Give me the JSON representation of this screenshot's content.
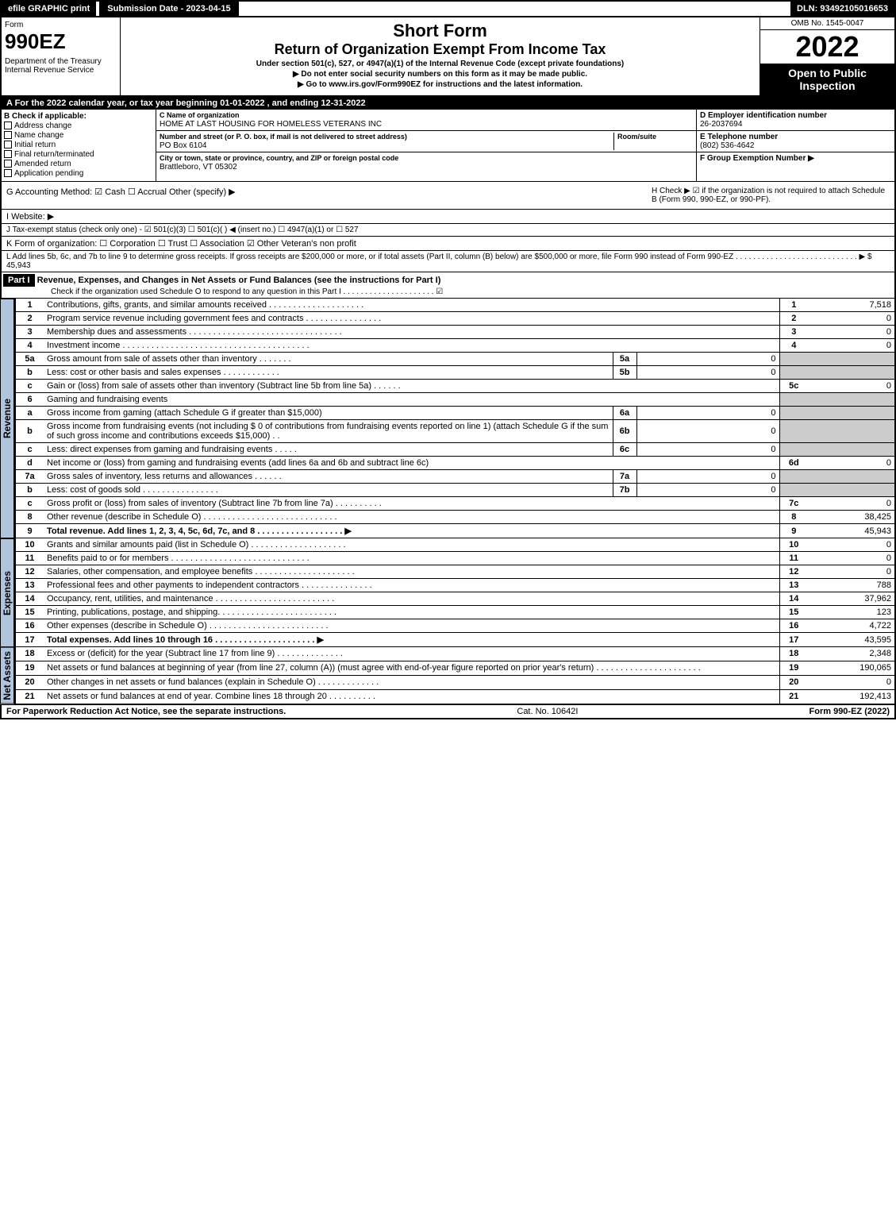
{
  "top": {
    "efile": "efile GRAPHIC print",
    "sub": "Submission Date - 2023-04-15",
    "dln": "DLN: 93492105016653"
  },
  "hdr": {
    "form": "Form",
    "num": "990EZ",
    "dept": "Department of the Treasury\nInternal Revenue Service",
    "t1": "Short Form",
    "t2": "Return of Organization Exempt From Income Tax",
    "sub1": "Under section 501(c), 527, or 4947(a)(1) of the Internal Revenue Code (except private foundations)",
    "sub2": "▶ Do not enter social security numbers on this form as it may be made public.",
    "sub3": "▶ Go to www.irs.gov/Form990EZ for instructions and the latest information.",
    "omb": "OMB No. 1545-0047",
    "year": "2022",
    "badge": "Open to Public Inspection"
  },
  "a": "A  For the 2022 calendar year, or tax year beginning 01-01-2022 , and ending 12-31-2022",
  "b": {
    "hdr": "B  Check if applicable:",
    "opts": [
      "Address change",
      "Name change",
      "Initial return",
      "Final return/terminated",
      "Amended return",
      "Application pending"
    ]
  },
  "c": {
    "name_lbl": "C Name of organization",
    "name": "HOME AT LAST HOUSING FOR HOMELESS VETERANS INC",
    "street_lbl": "Number and street (or P. O. box, if mail is not delivered to street address)",
    "street": "PO Box 6104",
    "room_lbl": "Room/suite",
    "city_lbl": "City or town, state or province, country, and ZIP or foreign postal code",
    "city": "Brattleboro, VT  05302"
  },
  "d": {
    "lbl": "D Employer identification number",
    "val": "26-2037694"
  },
  "e": {
    "lbl": "E Telephone number",
    "val": "(802) 536-4642"
  },
  "f": {
    "lbl": "F Group Exemption Number  ▶"
  },
  "g": "G Accounting Method:   ☑ Cash   ☐ Accrual   Other (specify) ▶",
  "h": "H  Check ▶ ☑ if the organization is not required to attach Schedule B (Form 990, 990-EZ, or 990-PF).",
  "i": "I Website: ▶",
  "j": "J Tax-exempt status (check only one) - ☑ 501(c)(3)  ☐ 501(c)( ) ◀ (insert no.)  ☐ 4947(a)(1) or  ☐ 527",
  "k": "K Form of organization:  ☐ Corporation  ☐ Trust  ☐ Association  ☑ Other Veteran's non profit",
  "l": "L Add lines 5b, 6c, and 7b to line 9 to determine gross receipts. If gross receipts are $200,000 or more, or if total assets (Part II, column (B) below) are $500,000 or more, file Form 990 instead of Form 990-EZ . . . . . . . . . . . . . . . . . . . . . . . . . . . . ▶ $ 45,943",
  "part1": {
    "hdr": "Part I",
    "title": "Revenue, Expenses, and Changes in Net Assets or Fund Balances (see the instructions for Part I)",
    "sub": "Check if the organization used Schedule O to respond to any question in this Part I . . . . . . . . . . . . . . . . . . . . . ☑"
  },
  "rev": [
    {
      "n": "1",
      "d": "Contributions, gifts, grants, and similar amounts received . . . . . . . . . . . . . . . . . . . .",
      "r": "1",
      "v": "7,518"
    },
    {
      "n": "2",
      "d": "Program service revenue including government fees and contracts . . . . . . . . . . . . . . . .",
      "r": "2",
      "v": "0"
    },
    {
      "n": "3",
      "d": "Membership dues and assessments . . . . . . . . . . . . . . . . . . . . . . . . . . . . . . . .",
      "r": "3",
      "v": "0"
    },
    {
      "n": "4",
      "d": "Investment income . . . . . . . . . . . . . . . . . . . . . . . . . . . . . . . . . . . . . . .",
      "r": "4",
      "v": "0"
    },
    {
      "n": "5a",
      "d": "Gross amount from sale of assets other than inventory . . . . . . .",
      "sl": "5a",
      "sv": "0"
    },
    {
      "n": "b",
      "d": "Less: cost or other basis and sales expenses . . . . . . . . . . . .",
      "sl": "5b",
      "sv": "0"
    },
    {
      "n": "c",
      "d": "Gain or (loss) from sale of assets other than inventory (Subtract line 5b from line 5a) . . . . . .",
      "r": "5c",
      "v": "0"
    },
    {
      "n": "6",
      "d": "Gaming and fundraising events"
    },
    {
      "n": "a",
      "d": "Gross income from gaming (attach Schedule G if greater than $15,000)",
      "sl": "6a",
      "sv": "0"
    },
    {
      "n": "b",
      "d": "Gross income from fundraising events (not including $ 0   of contributions from fundraising events reported on line 1) (attach Schedule G if the sum of such gross income and contributions exceeds $15,000)   . .",
      "sl": "6b",
      "sv": "0"
    },
    {
      "n": "c",
      "d": "Less: direct expenses from gaming and fundraising events  . . . . .",
      "sl": "6c",
      "sv": "0"
    },
    {
      "n": "d",
      "d": "Net income or (loss) from gaming and fundraising events (add lines 6a and 6b and subtract line 6c)",
      "r": "6d",
      "v": "0"
    },
    {
      "n": "7a",
      "d": "Gross sales of inventory, less returns and allowances . . . . . .",
      "sl": "7a",
      "sv": "0"
    },
    {
      "n": "b",
      "d": "Less: cost of goods sold       . . . . . . . . . . . . . . . .",
      "sl": "7b",
      "sv": "0"
    },
    {
      "n": "c",
      "d": "Gross profit or (loss) from sales of inventory (Subtract line 7b from line 7a) . . . . . . . . . .",
      "r": "7c",
      "v": "0"
    },
    {
      "n": "8",
      "d": "Other revenue (describe in Schedule O) . . . . . . . . . . . . . . . . . . . . . . . . . . . .",
      "r": "8",
      "v": "38,425"
    },
    {
      "n": "9",
      "d": "Total revenue. Add lines 1, 2, 3, 4, 5c, 6d, 7c, and 8 . . . . . . . . . . . . . . . . . .  ▶",
      "r": "9",
      "v": "45,943",
      "bold": true
    }
  ],
  "exp": [
    {
      "n": "10",
      "d": "Grants and similar amounts paid (list in Schedule O) . . . . . . . . . . . . . . . . . . . .",
      "r": "10",
      "v": "0"
    },
    {
      "n": "11",
      "d": "Benefits paid to or for members    . . . . . . . . . . . . . . . . . . . . . . . . . . . . .",
      "r": "11",
      "v": "0"
    },
    {
      "n": "12",
      "d": "Salaries, other compensation, and employee benefits . . . . . . . . . . . . . . . . . . . . .",
      "r": "12",
      "v": "0"
    },
    {
      "n": "13",
      "d": "Professional fees and other payments to independent contractors . . . . . . . . . . . . . . .",
      "r": "13",
      "v": "788"
    },
    {
      "n": "14",
      "d": "Occupancy, rent, utilities, and maintenance . . . . . . . . . . . . . . . . . . . . . . . . .",
      "r": "14",
      "v": "37,962"
    },
    {
      "n": "15",
      "d": "Printing, publications, postage, and shipping. . . . . . . . . . . . . . . . . . . . . . . . .",
      "r": "15",
      "v": "123"
    },
    {
      "n": "16",
      "d": "Other expenses (describe in Schedule O)    . . . . . . . . . . . . . . . . . . . . . . . . .",
      "r": "16",
      "v": "4,722"
    },
    {
      "n": "17",
      "d": "Total expenses. Add lines 10 through 16    . . . . . . . . . . . . . . . . . . . . .  ▶",
      "r": "17",
      "v": "43,595",
      "bold": true
    }
  ],
  "na": [
    {
      "n": "18",
      "d": "Excess or (deficit) for the year (Subtract line 17 from line 9)      . . . . . . . . . . . . . .",
      "r": "18",
      "v": "2,348"
    },
    {
      "n": "19",
      "d": "Net assets or fund balances at beginning of year (from line 27, column (A)) (must agree with end-of-year figure reported on prior year's return) . . . . . . . . . . . . . . . . . . . . . .",
      "r": "19",
      "v": "190,065"
    },
    {
      "n": "20",
      "d": "Other changes in net assets or fund balances (explain in Schedule O) . . . . . . . . . . . . .",
      "r": "20",
      "v": "0"
    },
    {
      "n": "21",
      "d": "Net assets or fund balances at end of year. Combine lines 18 through 20 . . . . . . . . . .",
      "r": "21",
      "v": "192,413"
    }
  ],
  "tabs": {
    "rev": "Revenue",
    "exp": "Expenses",
    "na": "Net Assets"
  },
  "footer": {
    "l": "For Paperwork Reduction Act Notice, see the separate instructions.",
    "m": "Cat. No. 10642I",
    "r": "Form 990-EZ (2022)"
  }
}
